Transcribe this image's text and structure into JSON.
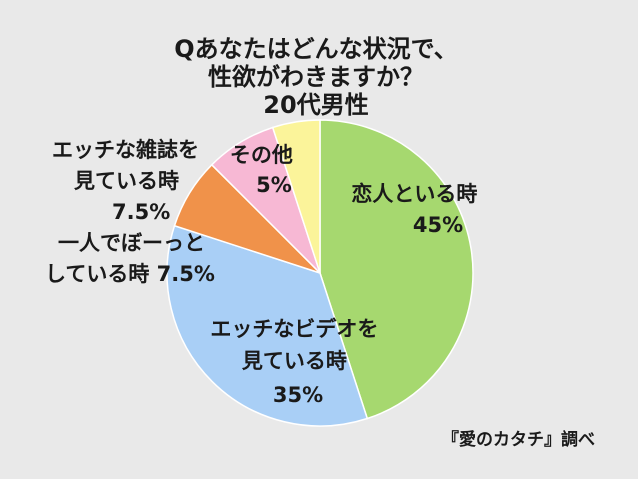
{
  "chart_data": {
    "type": "pie",
    "title_lines": [
      "Qあなたはどんな状況で、",
      "性欲がわきますか？",
      "20代男性"
    ],
    "slices": [
      {
        "label_lines": [
          "恋人といる時",
          "45%"
        ],
        "value": 45,
        "color": "#a6d86f"
      },
      {
        "label_lines": [
          "エッチなビデオを",
          "見ている時",
          "35%"
        ],
        "value": 35,
        "color": "#a9cff6"
      },
      {
        "label_lines": [
          "一人でぼーっと",
          "している時 7.5%"
        ],
        "value": 7.5,
        "color": "#f0924a"
      },
      {
        "label_lines": [
          "エッチな雑誌を",
          "見ている時",
          "7.5%"
        ],
        "value": 7.5,
        "color": "#f7b8d4"
      },
      {
        "label_lines": [
          "その他",
          "5%"
        ],
        "value": 5,
        "color": "#fbf49a"
      }
    ]
  },
  "source": "『愛のカタチ』調べ"
}
